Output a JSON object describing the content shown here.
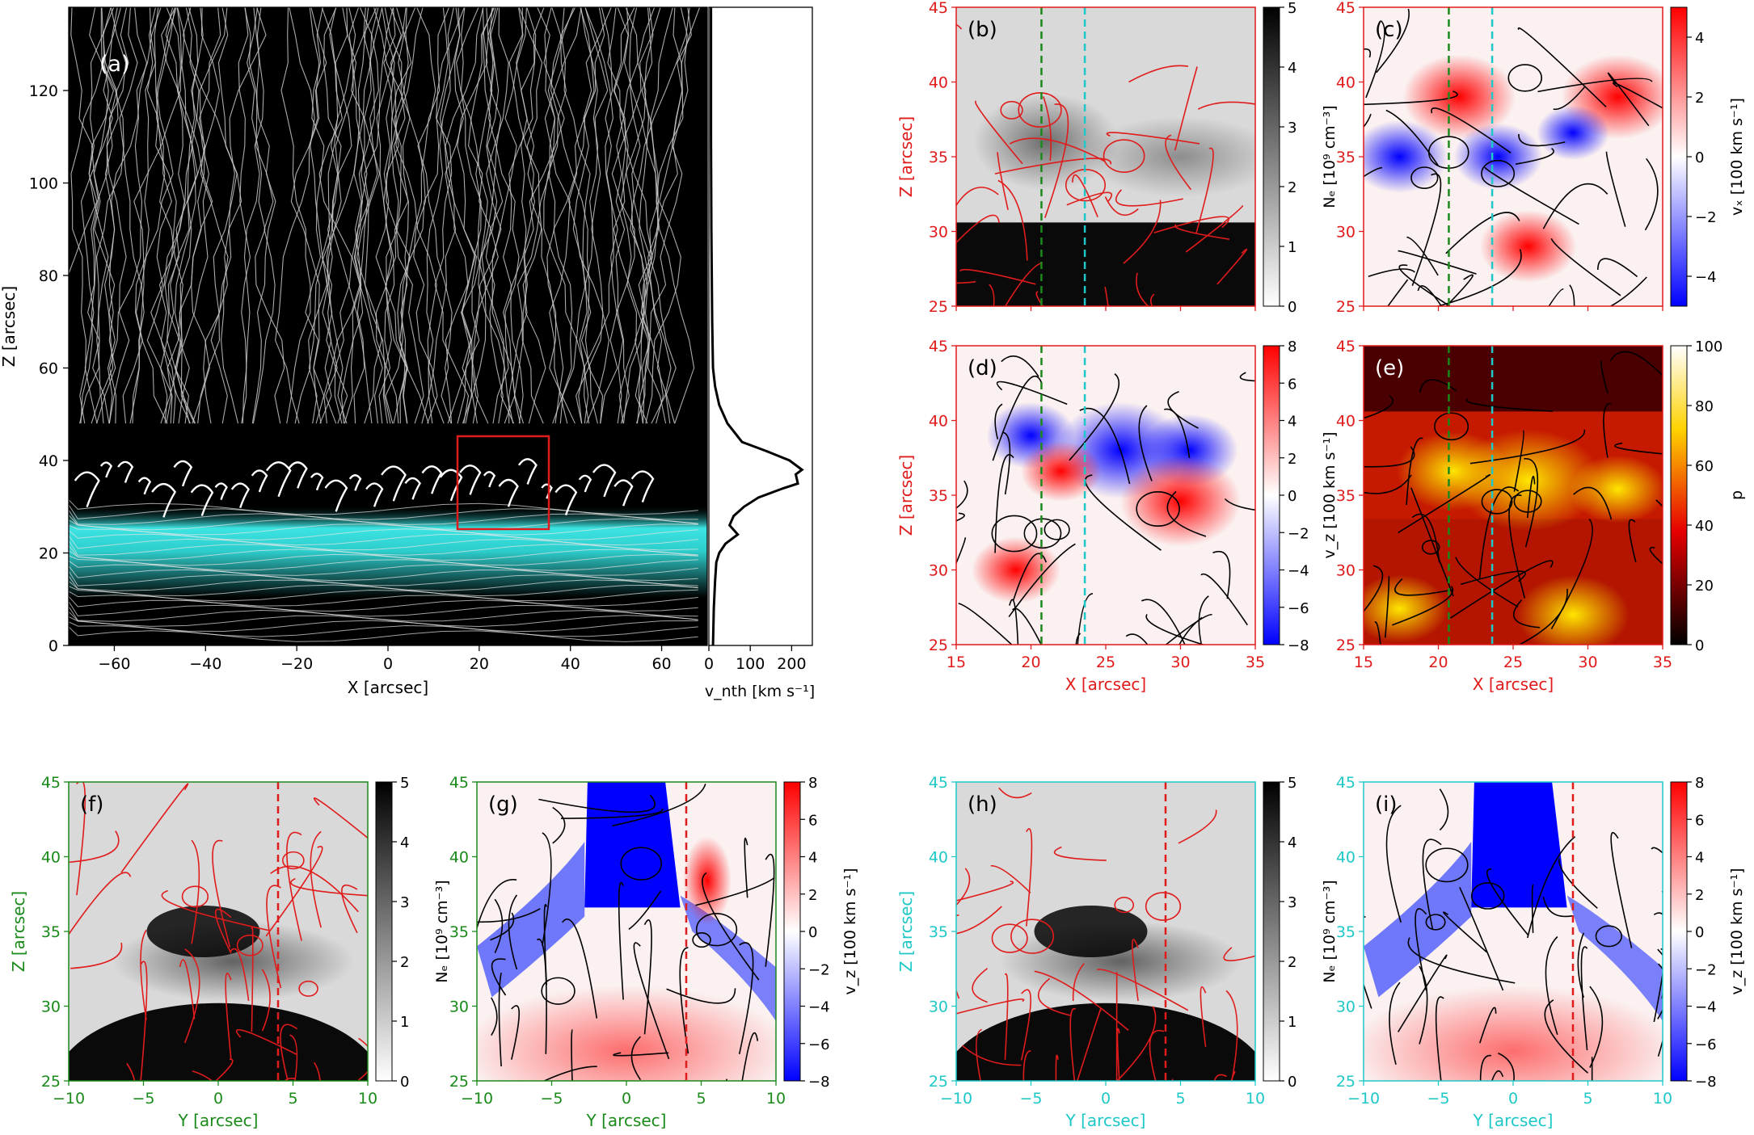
{
  "figure": {
    "panel_a": {
      "label": "(a)",
      "xlabel": "X [arcsec]",
      "ylabel": "Z [arcsec]",
      "xlim": [
        -70,
        70
      ],
      "ylim": [
        0,
        138
      ],
      "xticks": [
        "−60",
        "−40",
        "−20",
        "0",
        "20",
        "40",
        "60"
      ],
      "yticks": [
        "0",
        "20",
        "40",
        "60",
        "80",
        "100",
        "120"
      ],
      "roi_box": {
        "x": [
          15,
          35
        ],
        "z": [
          25,
          45
        ],
        "color": "#e01b1b"
      }
    },
    "panel_vnth": {
      "xlabel": "v_nth [km s⁻¹]",
      "xticks": [
        "0",
        "100",
        "200"
      ],
      "xlim": [
        0,
        250
      ]
    },
    "panel_b": {
      "label": "(b)",
      "cb_label": "Nₑ [10⁹ cm⁻³]",
      "cb_ticks": [
        "0",
        "1",
        "2",
        "3",
        "4",
        "5"
      ]
    },
    "panel_c": {
      "label": "(c)",
      "cb_label": "vₓ [100 km s⁻¹]",
      "cb_ticks": [
        "−4",
        "−2",
        "0",
        "2",
        "4"
      ]
    },
    "panel_d": {
      "label": "(d)",
      "cb_label": "v_z [100 km s⁻¹]",
      "cb_ticks": [
        "−8",
        "−6",
        "−4",
        "−2",
        "0",
        "2",
        "4",
        "6",
        "8"
      ]
    },
    "panel_e": {
      "label": "(e)",
      "cb_label": "p",
      "cb_ticks": [
        "0",
        "20",
        "40",
        "60",
        "80",
        "100"
      ]
    },
    "panel_f": {
      "label": "(f)",
      "cb_label": "Nₑ [10⁹ cm⁻³]",
      "cb_ticks": [
        "0",
        "1",
        "2",
        "3",
        "4",
        "5"
      ]
    },
    "panel_g": {
      "label": "(g)",
      "cb_label": "v_z [100 km s⁻¹]",
      "cb_ticks": [
        "−8",
        "−6",
        "−4",
        "−2",
        "0",
        "2",
        "4",
        "6",
        "8"
      ]
    },
    "panel_h": {
      "label": "(h)",
      "cb_label": "Nₑ [10⁹ cm⁻³]",
      "cb_ticks": [
        "0",
        "1",
        "2",
        "3",
        "4",
        "5"
      ]
    },
    "panel_i": {
      "label": "(i)",
      "cb_label": "v_z [100 km s⁻¹]",
      "cb_ticks": [
        "−8",
        "−6",
        "−4",
        "−2",
        "0",
        "2",
        "4",
        "6",
        "8"
      ]
    },
    "zoom_axes": {
      "xlabel_x": "X [arcsec]",
      "xlabel_y": "Y [arcsec]",
      "ylabel": "Z [arcsec]",
      "xticks_x": [
        "15",
        "20",
        "25",
        "30",
        "35"
      ],
      "xticks_y": [
        "−10",
        "−5",
        "0",
        "5",
        "10"
      ],
      "yticks": [
        "25",
        "30",
        "35",
        "40",
        "45"
      ]
    },
    "colors": {
      "red": "#e01b1b",
      "green": "#1a8a1a",
      "cyan": "#1fc8c8",
      "cyan_glow": "#3ff0ee"
    }
  },
  "chart_data": [
    {
      "type": "heatmap",
      "title": "(a)",
      "xlabel": "X [arcsec]",
      "ylabel": "Z [arcsec]",
      "xlim": [
        -70,
        70
      ],
      "ylim": [
        0,
        138
      ],
      "annotations": [
        "box X 15–35, Z 25–45"
      ]
    },
    {
      "type": "line",
      "xlabel": "v_nth [km s⁻¹]",
      "ylabel": "Z [arcsec]",
      "xlim": [
        0,
        250
      ],
      "ylim": [
        0,
        138
      ],
      "x": [
        10,
        12,
        15,
        18,
        25,
        40,
        70,
        50,
        60,
        85,
        120,
        180,
        215,
        210,
        225,
        195,
        140,
        80,
        45,
        25,
        15,
        10,
        8,
        6,
        5,
        5
      ],
      "y": [
        0,
        8,
        14,
        18,
        20,
        22,
        24,
        26,
        28,
        30,
        32,
        34,
        35,
        37,
        38,
        40,
        42,
        44,
        48,
        52,
        56,
        60,
        70,
        90,
        110,
        138
      ]
    },
    {
      "type": "heatmap",
      "title": "(b)",
      "xlim": [
        15,
        35
      ],
      "ylim": [
        25,
        45
      ],
      "colorbar": {
        "label": "Nₑ [10⁹ cm⁻³]",
        "range": [
          0,
          5
        ]
      },
      "vlines": [
        20.7,
        23.6
      ]
    },
    {
      "type": "heatmap",
      "title": "(c)",
      "xlim": [
        15,
        35
      ],
      "ylim": [
        25,
        45
      ],
      "colorbar": {
        "label": "vₓ [100 km s⁻¹]",
        "range": [
          -5,
          5
        ]
      },
      "vlines": [
        20.7,
        23.6
      ]
    },
    {
      "type": "heatmap",
      "title": "(d)",
      "xlim": [
        15,
        35
      ],
      "ylim": [
        25,
        45
      ],
      "colorbar": {
        "label": "v_z [100 km s⁻¹]",
        "range": [
          -8,
          8
        ]
      },
      "vlines": [
        20.7,
        23.6
      ]
    },
    {
      "type": "heatmap",
      "title": "(e)",
      "xlim": [
        15,
        35
      ],
      "ylim": [
        25,
        45
      ],
      "colorbar": {
        "label": "p",
        "range": [
          0,
          100
        ]
      },
      "vlines": [
        20.7,
        23.6
      ]
    },
    {
      "type": "heatmap",
      "title": "(f)",
      "xlim": [
        -10,
        10
      ],
      "ylim": [
        25,
        45
      ],
      "colorbar": {
        "label": "Nₑ [10⁹ cm⁻³]",
        "range": [
          0,
          5
        ]
      },
      "vlines": [
        4
      ]
    },
    {
      "type": "heatmap",
      "title": "(g)",
      "xlim": [
        -10,
        10
      ],
      "ylim": [
        25,
        45
      ],
      "colorbar": {
        "label": "v_z [100 km s⁻¹]",
        "range": [
          -8,
          8
        ]
      },
      "vlines": [
        4
      ]
    },
    {
      "type": "heatmap",
      "title": "(h)",
      "xlim": [
        -10,
        10
      ],
      "ylim": [
        25,
        45
      ],
      "colorbar": {
        "label": "Nₑ [10⁹ cm⁻³]",
        "range": [
          0,
          5
        ]
      },
      "vlines": [
        4
      ]
    },
    {
      "type": "heatmap",
      "title": "(i)",
      "xlim": [
        -10,
        10
      ],
      "ylim": [
        25,
        45
      ],
      "colorbar": {
        "label": "v_z [100 km s⁻¹]",
        "range": [
          -8,
          8
        ]
      },
      "vlines": [
        4
      ]
    }
  ]
}
